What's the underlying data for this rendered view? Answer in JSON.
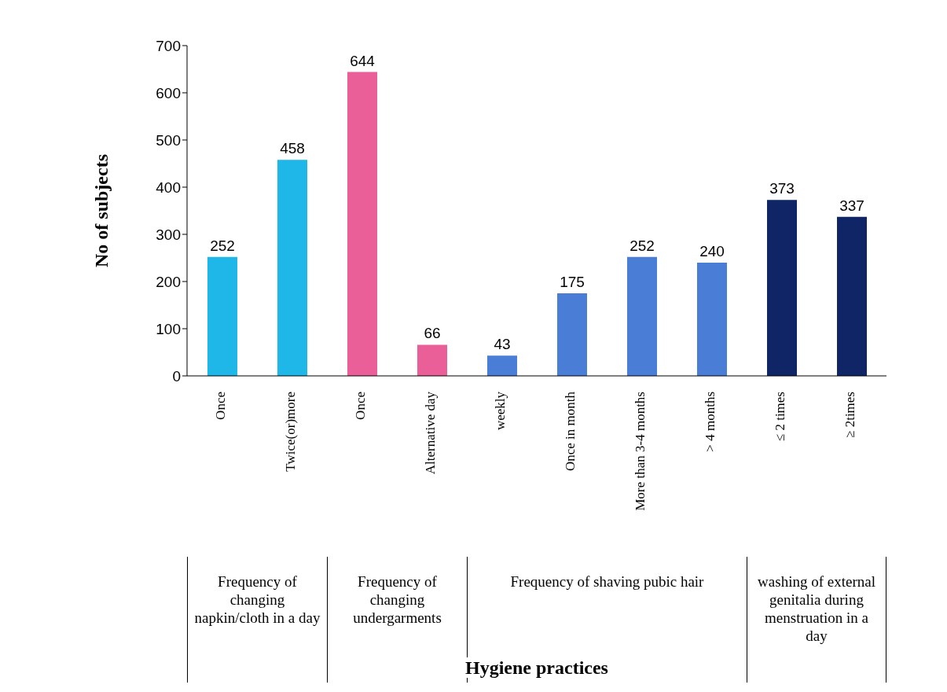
{
  "chart_data": {
    "type": "bar",
    "ylabel": "No of subjects",
    "categories": [
      "Once",
      "Twice(or)more",
      "Once",
      "Alternative day",
      "weekly",
      "Once in  month",
      "More than 3-4 months",
      "> 4 months",
      "≤ 2 times",
      "≥ 2times"
    ],
    "values": [
      252,
      458,
      644,
      66,
      43,
      175,
      252,
      240,
      373,
      337
    ],
    "colors": [
      "#1fb6e8",
      "#1fb6e8",
      "#ea5f98",
      "#ea5f98",
      "#4a7dd6",
      "#4a7dd6",
      "#4a7dd6",
      "#4a7dd6",
      "#0f2566",
      "#0f2566"
    ],
    "ylim": [
      0,
      700
    ],
    "yticks": [
      0,
      100,
      200,
      300,
      400,
      500,
      600,
      700
    ],
    "grid": false,
    "data_labels": true,
    "legend": false,
    "annotations": [
      "Frequency of changing napkin/cloth in a day",
      "Frequency of changing undergarments",
      "Frequency of shaving pubic hair",
      "washing of external genitalia during menstruation in a day",
      "Hygiene practices"
    ]
  }
}
